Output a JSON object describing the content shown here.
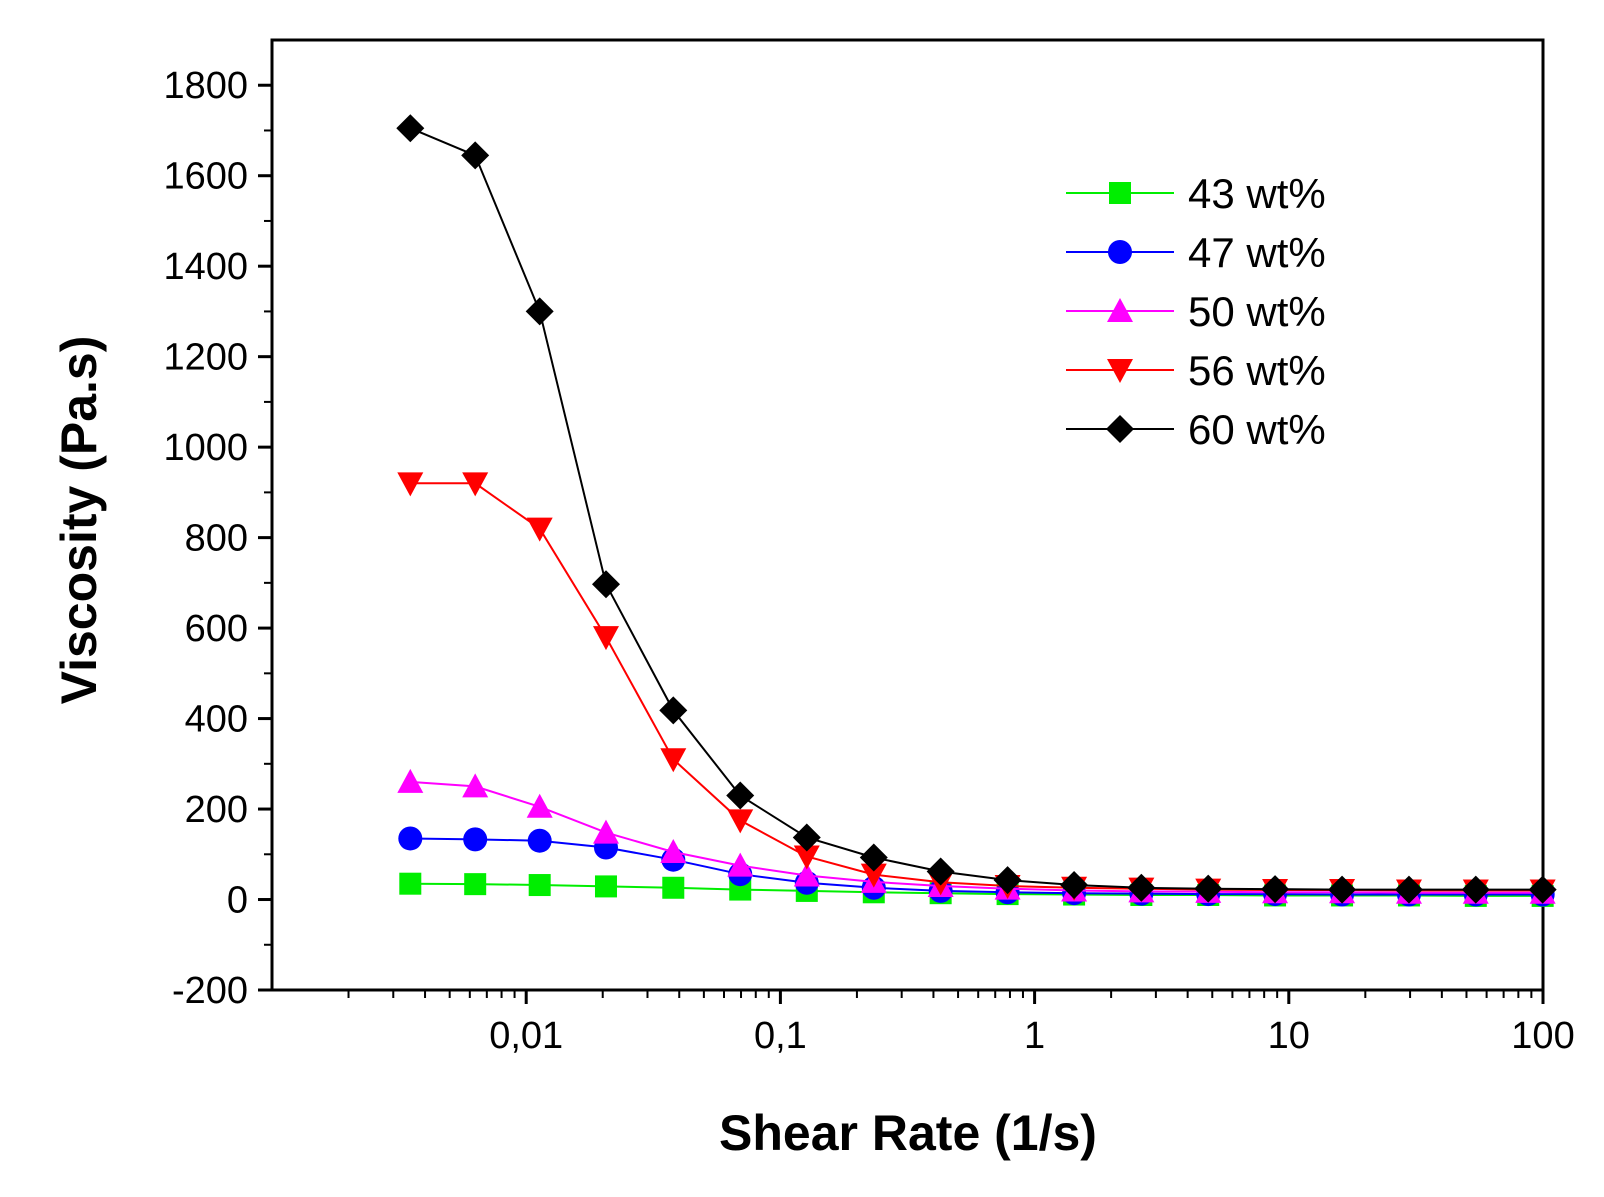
{
  "chart_data": {
    "type": "line",
    "title": "",
    "xlabel": "Shear Rate (1/s)",
    "ylabel": "Viscosity (Pa.s)",
    "x_scale": "log",
    "xlim": [
      0.001,
      100
    ],
    "ylim": [
      -200,
      1900
    ],
    "x_ticks": [
      0.01,
      0.1,
      1,
      10,
      100
    ],
    "x_tick_labels": [
      "0,01",
      "0,1",
      "1",
      "10",
      "100"
    ],
    "y_ticks": [
      -200,
      0,
      200,
      400,
      600,
      800,
      1000,
      1200,
      1400,
      1600,
      1800
    ],
    "y_tick_labels": [
      "-200",
      "0",
      "200",
      "400",
      "600",
      "800",
      "1000",
      "1200",
      "1400",
      "1600",
      "1800"
    ],
    "grid": false,
    "legend_position": "top-right",
    "x": [
      0.0035,
      0.0063,
      0.0113,
      0.0206,
      0.0379,
      0.0695,
      0.127,
      0.233,
      0.427,
      0.783,
      1.43,
      2.63,
      4.82,
      8.83,
      16.2,
      29.7,
      54.4,
      99.7
    ],
    "series": [
      {
        "name": "43 wt%",
        "color": "#00ee00",
        "marker": "square",
        "values": [
          35,
          34,
          32,
          29,
          26,
          22,
          19,
          16,
          14,
          12,
          11,
          10,
          10,
          9,
          9,
          9,
          8,
          8
        ]
      },
      {
        "name": "47 wt%",
        "color": "#0000ff",
        "marker": "circle",
        "values": [
          135,
          133,
          130,
          115,
          88,
          56,
          37,
          26,
          19,
          16,
          14,
          13,
          12,
          12,
          11,
          11,
          11,
          11
        ]
      },
      {
        "name": "50 wt%",
        "color": "#ff00ff",
        "marker": "triangle-up",
        "values": [
          260,
          250,
          205,
          148,
          105,
          75,
          53,
          39,
          30,
          24,
          20,
          18,
          17,
          16,
          16,
          15,
          15,
          15
        ]
      },
      {
        "name": "56 wt%",
        "color": "#ff0000",
        "marker": "triangle-down",
        "values": [
          920,
          920,
          820,
          580,
          310,
          175,
          95,
          55,
          38,
          30,
          26,
          24,
          22,
          21,
          21,
          20,
          20,
          20
        ]
      },
      {
        "name": "60 wt%",
        "color": "#000000",
        "marker": "diamond",
        "values": [
          1705,
          1645,
          1300,
          697,
          418,
          230,
          137,
          93,
          62,
          43,
          32,
          26,
          24,
          23,
          22,
          22,
          22,
          22
        ]
      }
    ]
  }
}
